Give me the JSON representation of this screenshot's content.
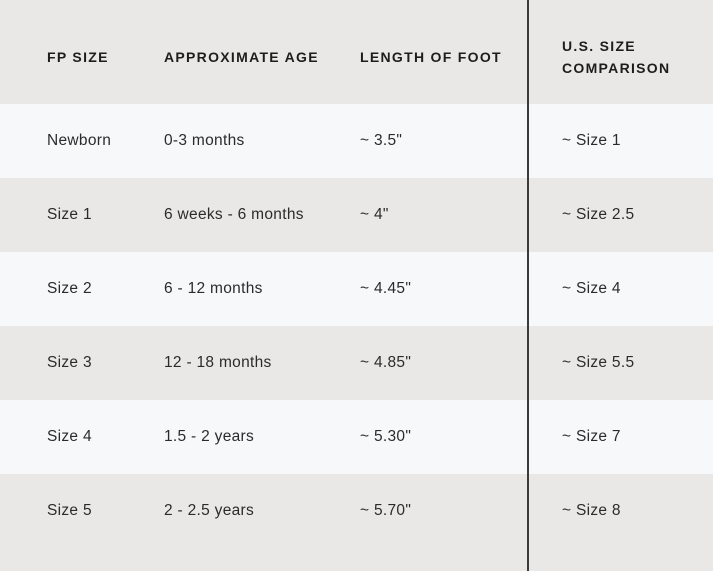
{
  "table": {
    "title": "footwear-size-chart",
    "columns": [
      {
        "label": "FP SIZE"
      },
      {
        "label": "APPROXIMATE AGE"
      },
      {
        "label": "LENGTH OF FOOT"
      },
      {
        "label": "U.S. SIZE COMPARISON"
      }
    ],
    "rows": [
      [
        "Newborn",
        "0-3 months",
        "~ 3.5\"",
        "~ Size 1"
      ],
      [
        "Size 1",
        "6 weeks - 6 months",
        "~ 4\"",
        "~ Size 2.5"
      ],
      [
        "Size 2",
        "6 - 12 months",
        "~ 4.45\"",
        "~ Size 4"
      ],
      [
        "Size 3",
        "12 - 18 months",
        "~ 4.85\"",
        "~ Size 5.5"
      ],
      [
        "Size 4",
        "1.5 - 2 years",
        "~ 5.30\"",
        "~ Size 7"
      ],
      [
        "Size 5",
        "2 - 2.5 years",
        "~ 5.70\"",
        "~ Size 8"
      ]
    ],
    "colors": {
      "row_light": "#f7f8f9",
      "row_gray": "#e9e8e7",
      "divider": "#3b3b3b",
      "header_text": "#1d1d1d",
      "body_text": "#2b2b2b"
    }
  }
}
